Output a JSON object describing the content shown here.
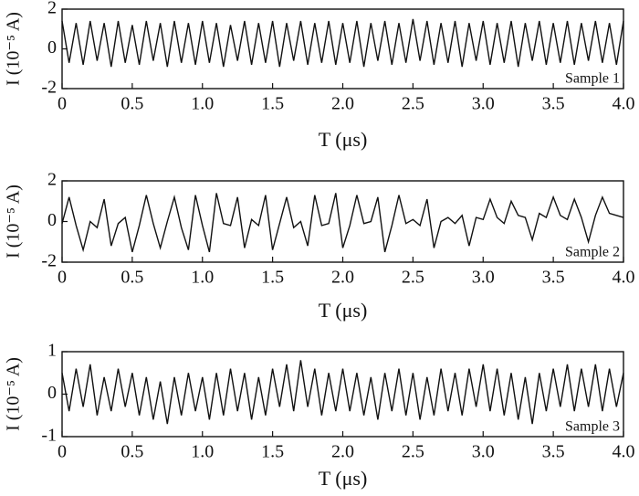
{
  "chart_data": [
    {
      "type": "line",
      "ylabel": "I (10⁻⁵ A)",
      "xlabel": "T (μs)",
      "annotation": "Sample 1",
      "color": "#111111",
      "xlim": [
        0,
        4
      ],
      "ylim": [
        -2,
        2
      ],
      "yticks": [
        -2,
        0,
        2
      ],
      "xticks": [
        0,
        0.5,
        {
          "value": 1,
          "label": "1.0"
        },
        1.5,
        {
          "value": 2,
          "label": "2.0"
        },
        2.5,
        {
          "value": 3,
          "label": "3.0"
        },
        3.5,
        {
          "value": 4,
          "label": "4.0"
        }
      ],
      "x": [
        0,
        0.05,
        0.1,
        0.15,
        0.2,
        0.25,
        0.3,
        0.35,
        0.4,
        0.45,
        0.5,
        0.55,
        0.6,
        0.65,
        0.7,
        0.75,
        0.8,
        0.85,
        0.9,
        0.95,
        1,
        1.05,
        1.1,
        1.15,
        1.2,
        1.25,
        1.3,
        1.35,
        1.4,
        1.45,
        1.5,
        1.55,
        1.6,
        1.65,
        1.7,
        1.75,
        1.8,
        1.85,
        1.9,
        1.95,
        2,
        2.05,
        2.1,
        2.15,
        2.2,
        2.25,
        2.3,
        2.35,
        2.4,
        2.45,
        2.5,
        2.55,
        2.6,
        2.65,
        2.7,
        2.75,
        2.8,
        2.85,
        2.9,
        2.95,
        3,
        3.05,
        3.1,
        3.15,
        3.2,
        3.25,
        3.3,
        3.35,
        3.4,
        3.45,
        3.5,
        3.55,
        3.6,
        3.65,
        3.7,
        3.75,
        3.8,
        3.85,
        3.9,
        3.95,
        4
      ],
      "values": [
        1.4,
        -0.7,
        1.3,
        -0.8,
        1.4,
        -0.6,
        1.3,
        -0.9,
        1.4,
        -0.7,
        1.2,
        -0.8,
        1.4,
        -0.6,
        1.3,
        -0.9,
        1.4,
        -0.7,
        1.3,
        -0.8,
        1.4,
        -0.7,
        1.3,
        -0.9,
        1.2,
        -0.6,
        1.4,
        -0.8,
        1.3,
        -0.7,
        1.4,
        -0.9,
        1.3,
        -0.6,
        1.4,
        -0.8,
        1.3,
        -0.7,
        1.4,
        -0.8,
        1.3,
        -0.7,
        1.4,
        -0.9,
        1.3,
        -0.6,
        1.4,
        -0.8,
        1.3,
        -0.7,
        1.5,
        -0.6,
        1.4,
        -0.8,
        1.3,
        -0.7,
        1.4,
        -0.9,
        1.3,
        -0.6,
        1.4,
        -0.8,
        1.3,
        -0.7,
        1.4,
        -0.9,
        1.3,
        -0.6,
        1.4,
        -0.8,
        1.3,
        -0.7,
        1.4,
        -0.8,
        1.3,
        -0.6,
        1.4,
        -0.7,
        1.3,
        -0.8,
        1.4
      ]
    },
    {
      "type": "line",
      "ylabel": "I (10⁻⁵ A)",
      "xlabel": "T (μs)",
      "annotation": "Sample 2",
      "color": "#111111",
      "xlim": [
        0,
        4
      ],
      "ylim": [
        -2,
        2
      ],
      "yticks": [
        -2,
        0,
        2
      ],
      "xticks": [
        0,
        0.5,
        {
          "value": 1,
          "label": "1.0"
        },
        1.5,
        {
          "value": 2,
          "label": "2.0"
        },
        2.5,
        {
          "value": 3,
          "label": "3.0"
        },
        3.5,
        {
          "value": 4,
          "label": "4.0"
        }
      ],
      "x": [
        0,
        0.05,
        0.1,
        0.15,
        0.2,
        0.25,
        0.3,
        0.35,
        0.4,
        0.45,
        0.5,
        0.55,
        0.6,
        0.65,
        0.7,
        0.75,
        0.8,
        0.85,
        0.9,
        0.95,
        1,
        1.05,
        1.1,
        1.15,
        1.2,
        1.25,
        1.3,
        1.35,
        1.4,
        1.45,
        1.5,
        1.55,
        1.6,
        1.65,
        1.7,
        1.75,
        1.8,
        1.85,
        1.9,
        1.95,
        2,
        2.05,
        2.1,
        2.15,
        2.2,
        2.25,
        2.3,
        2.35,
        2.4,
        2.45,
        2.5,
        2.55,
        2.6,
        2.65,
        2.7,
        2.75,
        2.8,
        2.85,
        2.9,
        2.95,
        3,
        3.05,
        3.1,
        3.15,
        3.2,
        3.25,
        3.3,
        3.35,
        3.4,
        3.45,
        3.5,
        3.55,
        3.6,
        3.65,
        3.7,
        3.75,
        3.8,
        3.85,
        3.9,
        3.95,
        4
      ],
      "values": [
        -0.1,
        1.2,
        -0.2,
        -1.4,
        0.0,
        -0.3,
        1.1,
        -1.2,
        -0.1,
        0.2,
        -1.5,
        -0.2,
        1.3,
        -0.1,
        -1.3,
        0.0,
        1.2,
        -0.3,
        -1.4,
        1.3,
        -0.2,
        -1.5,
        1.4,
        -0.1,
        -0.2,
        1.2,
        -1.3,
        0.1,
        -0.2,
        1.3,
        -1.4,
        -0.1,
        1.2,
        -0.3,
        0.0,
        -1.2,
        1.3,
        -0.2,
        -0.1,
        1.4,
        -1.3,
        -0.2,
        1.3,
        -0.1,
        0.0,
        1.2,
        -1.5,
        -0.2,
        1.3,
        -0.1,
        0.1,
        -0.2,
        1.1,
        -1.3,
        0.0,
        0.2,
        -0.1,
        0.3,
        -1.2,
        0.2,
        0.1,
        1.1,
        0.2,
        -0.1,
        1.0,
        0.3,
        0.2,
        -0.9,
        0.4,
        0.2,
        1.2,
        0.3,
        0.1,
        1.1,
        0.2,
        -1.0,
        0.3,
        1.2,
        0.4,
        0.3,
        0.2
      ]
    },
    {
      "type": "line",
      "ylabel": "I (10⁻⁵ A)",
      "xlabel": "T (μs)",
      "annotation": "Sample 3",
      "color": "#111111",
      "xlim": [
        0,
        4
      ],
      "ylim": [
        -1,
        1
      ],
      "yticks": [
        -1,
        0,
        1
      ],
      "xticks": [
        0,
        0.5,
        {
          "value": 1,
          "label": "1.0"
        },
        1.5,
        {
          "value": 2,
          "label": "2.0"
        },
        2.5,
        {
          "value": 3,
          "label": "3.0"
        },
        3.5,
        {
          "value": 4,
          "label": "4.0"
        }
      ],
      "x": [
        0,
        0.05,
        0.1,
        0.15,
        0.2,
        0.25,
        0.3,
        0.35,
        0.4,
        0.45,
        0.5,
        0.55,
        0.6,
        0.65,
        0.7,
        0.75,
        0.8,
        0.85,
        0.9,
        0.95,
        1,
        1.05,
        1.1,
        1.15,
        1.2,
        1.25,
        1.3,
        1.35,
        1.4,
        1.45,
        1.5,
        1.55,
        1.6,
        1.65,
        1.7,
        1.75,
        1.8,
        1.85,
        1.9,
        1.95,
        2,
        2.05,
        2.1,
        2.15,
        2.2,
        2.25,
        2.3,
        2.35,
        2.4,
        2.45,
        2.5,
        2.55,
        2.6,
        2.65,
        2.7,
        2.75,
        2.8,
        2.85,
        2.9,
        2.95,
        3,
        3.05,
        3.1,
        3.15,
        3.2,
        3.25,
        3.3,
        3.35,
        3.4,
        3.45,
        3.5,
        3.55,
        3.6,
        3.65,
        3.7,
        3.75,
        3.8,
        3.85,
        3.9,
        3.95,
        4
      ],
      "values": [
        0.5,
        -0.4,
        0.6,
        -0.3,
        0.7,
        -0.5,
        0.4,
        -0.4,
        0.6,
        -0.3,
        0.5,
        -0.5,
        0.4,
        -0.6,
        0.3,
        -0.7,
        0.4,
        -0.5,
        0.5,
        -0.4,
        0.4,
        -0.6,
        0.5,
        -0.5,
        0.6,
        -0.4,
        0.5,
        -0.6,
        0.4,
        -0.5,
        0.6,
        -0.3,
        0.7,
        -0.4,
        0.8,
        -0.3,
        0.6,
        -0.5,
        0.5,
        -0.4,
        0.6,
        -0.4,
        0.5,
        -0.5,
        0.4,
        -0.6,
        0.5,
        -0.4,
        0.6,
        -0.5,
        0.5,
        -0.6,
        0.4,
        -0.5,
        0.6,
        -0.4,
        0.5,
        -0.5,
        0.6,
        -0.3,
        0.7,
        -0.4,
        0.6,
        -0.5,
        0.5,
        -0.6,
        0.4,
        -0.7,
        0.5,
        -0.4,
        0.6,
        -0.3,
        0.7,
        -0.4,
        0.6,
        -0.3,
        0.7,
        -0.4,
        0.6,
        -0.3,
        0.5
      ]
    }
  ]
}
